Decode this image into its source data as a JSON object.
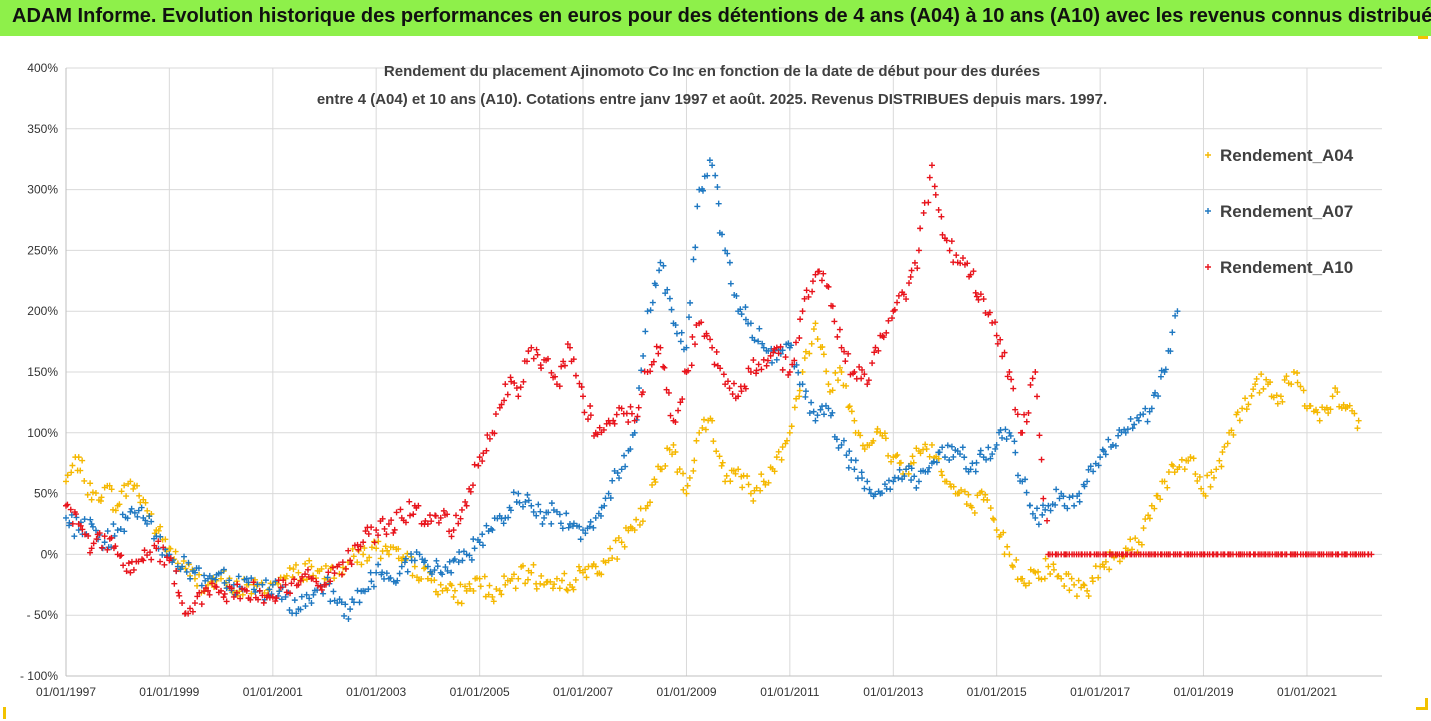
{
  "header": {
    "title": "ADAM Informe. Evolution historique des performances en euros pour des détentions de 4 ans (A04) à 10 ans (A10) avec les revenus connus distribués"
  },
  "chart_data": {
    "type": "scatter",
    "title_line1": "Rendement du placement Ajinomoto Co Inc en fonction de la date de début pour des durées",
    "title_line2": "entre 4 (A04) et 10 ans (A10). Cotations entre janv 1997 et août. 2025. Revenus DISTRIBUES depuis mars. 1997.",
    "ylim": [
      -100,
      400
    ],
    "yticks": [
      -100,
      -50,
      0,
      50,
      100,
      150,
      200,
      250,
      300,
      350,
      400
    ],
    "ytick_labels": [
      "- 100%",
      "- 50%",
      "0%",
      "50%",
      "100%",
      "150%",
      "200%",
      "250%",
      "300%",
      "350%",
      "400%"
    ],
    "xlim": [
      "1997-01-01",
      "2022-06-15"
    ],
    "xtick_labels": [
      "01/01/1997",
      "01/01/1999",
      "01/01/2001",
      "01/01/2003",
      "01/01/2005",
      "01/01/2007",
      "01/01/2009",
      "01/01/2011",
      "01/01/2013",
      "01/01/2015",
      "01/01/2017",
      "01/01/2019",
      "01/01/2021"
    ],
    "xtick_dates": [
      "1997-01-01",
      "1999-01-01",
      "2001-01-01",
      "2003-01-01",
      "2005-01-01",
      "2007-01-01",
      "2009-01-01",
      "2011-01-01",
      "2013-01-01",
      "2015-01-01",
      "2017-01-01",
      "2019-01-01",
      "2021-01-01"
    ],
    "grid": true,
    "legend_position": "right",
    "marker": "+",
    "series": [
      {
        "name": "Rendement_A04",
        "color": "#f5b800",
        "x": [
          "1997-01",
          "1997-04",
          "1997-07",
          "1997-10",
          "1998-01",
          "1998-04",
          "1998-07",
          "1998-10",
          "1999-01",
          "1999-04",
          "1999-07",
          "1999-10",
          "2000-01",
          "2000-04",
          "2000-07",
          "2000-10",
          "2001-01",
          "2001-04",
          "2001-07",
          "2001-10",
          "2002-01",
          "2002-04",
          "2002-07",
          "2002-10",
          "2003-01",
          "2003-04",
          "2003-07",
          "2003-10",
          "2004-01",
          "2004-04",
          "2004-07",
          "2004-10",
          "2005-01",
          "2005-04",
          "2005-07",
          "2005-10",
          "2006-01",
          "2006-04",
          "2006-07",
          "2006-10",
          "2007-01",
          "2007-04",
          "2007-07",
          "2007-10",
          "2008-01",
          "2008-04",
          "2008-07",
          "2008-10",
          "2009-01",
          "2009-04",
          "2009-07",
          "2009-10",
          "2010-01",
          "2010-04",
          "2010-07",
          "2010-10",
          "2011-01",
          "2011-04",
          "2011-07",
          "2011-10",
          "2012-01",
          "2012-04",
          "2012-07",
          "2012-10",
          "2013-01",
          "2013-04",
          "2013-07",
          "2013-10",
          "2014-01",
          "2014-04",
          "2014-07",
          "2014-10",
          "2015-01",
          "2015-04",
          "2015-07",
          "2015-10",
          "2016-01",
          "2016-04",
          "2016-07",
          "2016-10",
          "2017-01",
          "2017-04",
          "2017-07",
          "2017-10",
          "2018-01",
          "2018-04",
          "2018-07",
          "2018-10",
          "2019-01",
          "2019-04",
          "2019-07",
          "2019-10",
          "2020-01",
          "2020-04",
          "2020-07",
          "2020-10",
          "2021-01",
          "2021-04",
          "2021-07",
          "2021-10",
          "2022-01"
        ],
        "y": [
          60,
          80,
          45,
          55,
          40,
          60,
          45,
          20,
          5,
          -10,
          -20,
          -25,
          -20,
          -30,
          -25,
          -30,
          -25,
          -20,
          -15,
          -10,
          -20,
          -10,
          -5,
          0,
          5,
          0,
          -5,
          -10,
          -20,
          -25,
          -35,
          -30,
          -20,
          -35,
          -25,
          -20,
          -15,
          -25,
          -20,
          -25,
          -15,
          -10,
          -5,
          10,
          20,
          40,
          70,
          90,
          50,
          100,
          110,
          60,
          70,
          50,
          60,
          80,
          100,
          150,
          190,
          140,
          150,
          110,
          90,
          100,
          80,
          70,
          85,
          90,
          60,
          50,
          40,
          45,
          20,
          0,
          -20,
          -15,
          -10,
          -20,
          -25,
          -30,
          -10,
          0,
          5,
          10,
          40,
          60,
          70,
          80,
          50,
          70,
          100,
          120,
          140,
          140,
          130,
          150,
          120,
          110,
          130,
          120,
          110
        ]
      },
      {
        "name": "Rendement_A07",
        "color": "#1f78c1",
        "x": [
          "1997-01",
          "1997-04",
          "1997-07",
          "1997-10",
          "1998-01",
          "1998-04",
          "1998-07",
          "1998-10",
          "1999-01",
          "1999-04",
          "1999-07",
          "1999-10",
          "2000-01",
          "2000-04",
          "2000-07",
          "2000-10",
          "2001-01",
          "2001-04",
          "2001-07",
          "2001-10",
          "2002-01",
          "2002-04",
          "2002-07",
          "2002-10",
          "2003-01",
          "2003-04",
          "2003-07",
          "2003-10",
          "2004-01",
          "2004-04",
          "2004-07",
          "2004-10",
          "2005-01",
          "2005-04",
          "2005-07",
          "2005-10",
          "2006-01",
          "2006-04",
          "2006-07",
          "2006-10",
          "2007-01",
          "2007-04",
          "2007-07",
          "2007-10",
          "2008-01",
          "2008-04",
          "2008-07",
          "2008-10",
          "2009-01",
          "2009-04",
          "2009-07",
          "2009-10",
          "2010-01",
          "2010-04",
          "2010-07",
          "2010-10",
          "2011-01",
          "2011-04",
          "2011-07",
          "2011-10",
          "2012-01",
          "2012-04",
          "2012-07",
          "2012-10",
          "2013-01",
          "2013-04",
          "2013-07",
          "2013-10",
          "2014-01",
          "2014-04",
          "2014-07",
          "2014-10",
          "2015-01",
          "2015-04",
          "2015-07",
          "2015-10",
          "2016-01",
          "2016-04",
          "2016-07",
          "2016-10",
          "2017-01",
          "2017-04",
          "2017-07",
          "2017-10",
          "2018-01",
          "2018-04",
          "2018-07"
        ],
        "y": [
          30,
          20,
          25,
          10,
          20,
          35,
          30,
          15,
          0,
          -10,
          -15,
          -20,
          -15,
          -25,
          -20,
          -30,
          -25,
          -35,
          -45,
          -40,
          -25,
          -40,
          -45,
          -30,
          -15,
          -20,
          -10,
          -5,
          -10,
          -15,
          -5,
          0,
          10,
          20,
          30,
          50,
          40,
          30,
          35,
          25,
          20,
          30,
          50,
          70,
          100,
          200,
          240,
          190,
          170,
          300,
          320,
          250,
          200,
          190,
          170,
          160,
          170,
          140,
          110,
          120,
          90,
          70,
          60,
          50,
          60,
          70,
          60,
          75,
          80,
          85,
          70,
          80,
          90,
          100,
          60,
          30,
          40,
          50,
          40,
          60,
          80,
          90,
          100,
          110,
          120,
          150,
          200
        ]
      },
      {
        "name": "Rendement_A10",
        "color": "#e8141c",
        "x": [
          "1997-01",
          "1997-04",
          "1997-07",
          "1997-10",
          "1998-01",
          "1998-04",
          "1998-07",
          "1998-10",
          "1999-01",
          "1999-04",
          "1999-07",
          "1999-10",
          "2000-01",
          "2000-04",
          "2000-07",
          "2000-10",
          "2001-01",
          "2001-04",
          "2001-07",
          "2001-10",
          "2002-01",
          "2002-04",
          "2002-07",
          "2002-10",
          "2003-01",
          "2003-04",
          "2003-07",
          "2003-10",
          "2004-01",
          "2004-04",
          "2004-07",
          "2004-10",
          "2005-01",
          "2005-04",
          "2005-07",
          "2005-10",
          "2006-01",
          "2006-04",
          "2006-07",
          "2006-10",
          "2007-01",
          "2007-04",
          "2007-07",
          "2007-10",
          "2008-01",
          "2008-04",
          "2008-07",
          "2008-10",
          "2009-01",
          "2009-04",
          "2009-07",
          "2009-10",
          "2010-01",
          "2010-04",
          "2010-07",
          "2010-10",
          "2011-01",
          "2011-04",
          "2011-07",
          "2011-10",
          "2012-01",
          "2012-04",
          "2012-07",
          "2012-10",
          "2013-01",
          "2013-04",
          "2013-07",
          "2013-10",
          "2014-01",
          "2014-04",
          "2014-07",
          "2014-10",
          "2015-01",
          "2015-04",
          "2015-07",
          "2015-10",
          "2016-01",
          "2016-04",
          "2016-07",
          "2016-10",
          "2017-01",
          "2017-04",
          "2017-07",
          "2017-10",
          "2018-01",
          "2018-04",
          "2018-07",
          "2018-10",
          "2019-01",
          "2019-04",
          "2019-07",
          "2019-10",
          "2020-01",
          "2020-04",
          "2020-07",
          "2020-10",
          "2021-01",
          "2021-04",
          "2021-07",
          "2021-10",
          "2022-01",
          "2022-04"
        ],
        "y": [
          40,
          25,
          5,
          15,
          0,
          -15,
          -5,
          5,
          -5,
          -40,
          -40,
          -30,
          -30,
          -35,
          -30,
          -30,
          -35,
          -25,
          -25,
          -20,
          -25,
          -10,
          -5,
          10,
          20,
          25,
          30,
          40,
          25,
          30,
          20,
          40,
          80,
          100,
          140,
          130,
          170,
          160,
          140,
          170,
          130,
          100,
          110,
          120,
          110,
          150,
          170,
          110,
          150,
          190,
          170,
          140,
          130,
          150,
          160,
          170,
          150,
          200,
          230,
          220,
          170,
          150,
          140,
          180,
          200,
          210,
          250,
          320,
          260,
          240,
          230,
          210,
          180,
          150,
          100,
          150,
          0,
          0,
          0,
          0,
          0,
          0,
          0,
          0,
          0,
          0,
          0,
          0,
          0,
          0,
          0,
          0,
          0,
          0,
          0,
          0,
          0,
          0,
          0,
          0,
          0,
          0
        ]
      }
    ]
  }
}
